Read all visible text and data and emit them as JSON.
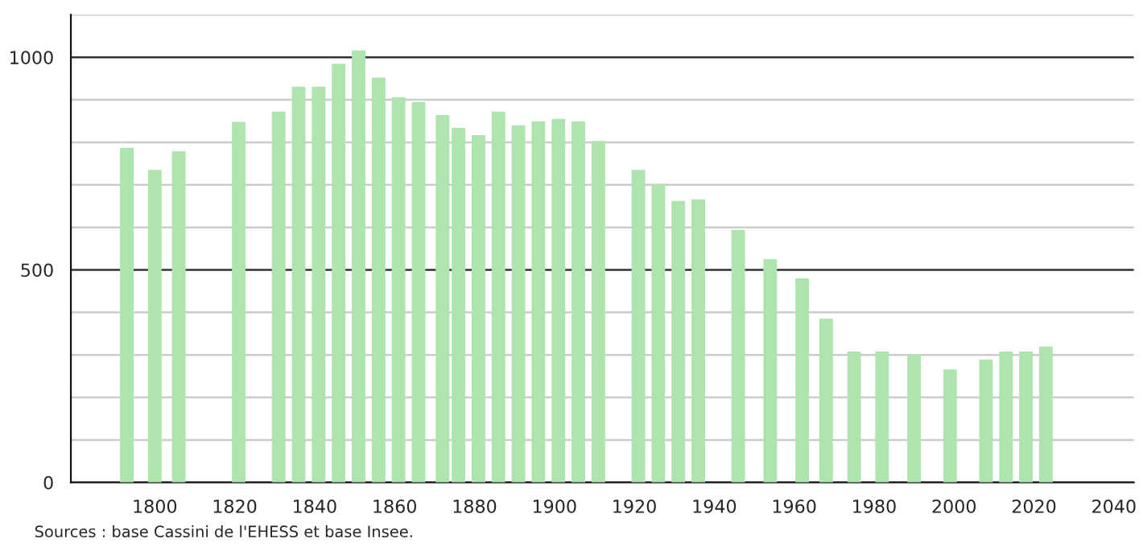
{
  "chart_data": {
    "type": "bar",
    "x": [
      1793,
      1800,
      1806,
      1821,
      1831,
      1836,
      1841,
      1846,
      1851,
      1856,
      1861,
      1866,
      1872,
      1876,
      1881,
      1886,
      1891,
      1896,
      1901,
      1906,
      1911,
      1921,
      1926,
      1931,
      1936,
      1946,
      1954,
      1962,
      1968,
      1975,
      1982,
      1990,
      1999,
      2008,
      2013,
      2018,
      2023
    ],
    "values": [
      787,
      735,
      779,
      848,
      872,
      931,
      931,
      985,
      1016,
      952,
      906,
      895,
      864,
      834,
      817,
      872,
      840,
      849,
      855,
      849,
      803,
      735,
      702,
      662,
      666,
      594,
      525,
      480,
      385,
      308,
      308,
      301,
      266,
      289,
      308,
      308,
      320
    ],
    "color": "#aee4ae",
    "xlim": [
      1779,
      2045
    ],
    "xticks": [
      1800,
      1820,
      1840,
      1860,
      1880,
      1900,
      1920,
      1940,
      1960,
      1980,
      2000,
      2020,
      2040
    ],
    "ylim": [
      0,
      1100
    ],
    "yticks": [
      0,
      {
        "value": 100,
        "label": null
      },
      {
        "value": 200,
        "label": null
      },
      {
        "value": 300,
        "label": null
      },
      {
        "value": 400,
        "label": null
      },
      500,
      {
        "value": 600,
        "label": null
      },
      {
        "value": 700,
        "label": null
      },
      {
        "value": 800,
        "label": null
      },
      {
        "value": 900,
        "label": null
      },
      1000,
      {
        "value": 1100,
        "label": null
      }
    ],
    "grid": "y",
    "annotations": [
      "Sources : base Cassini de l'EHESS et base Insee."
    ]
  }
}
